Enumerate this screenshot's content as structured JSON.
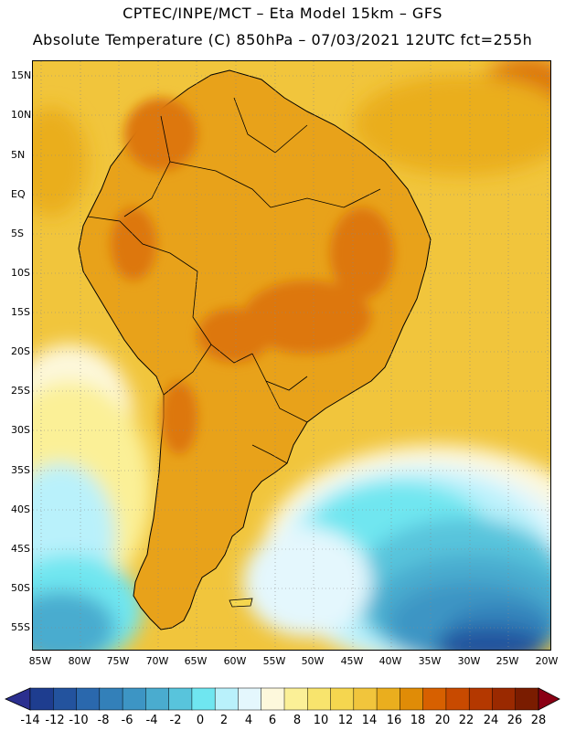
{
  "title": {
    "line1": "CPTEC/INPE/MCT –  Eta Model 15km – GFS",
    "line2": "Absolute Temperature (C) 850hPa – 07/03/2021 12UTC fct=255h"
  },
  "axes": {
    "lat_labels": [
      "15N",
      "10N",
      "5N",
      "EQ",
      "5S",
      "10S",
      "15S",
      "20S",
      "25S",
      "30S",
      "35S",
      "40S",
      "45S",
      "50S",
      "55S"
    ],
    "lon_labels": [
      "85W",
      "80W",
      "75W",
      "70W",
      "65W",
      "60W",
      "55W",
      "50W",
      "45W",
      "40W",
      "35W",
      "30W",
      "25W",
      "20W"
    ]
  },
  "colorbar": {
    "labels": [
      "-14",
      "-12",
      "-10",
      "-8",
      "-6",
      "-4",
      "-2",
      "0",
      "2",
      "4",
      "6",
      "8",
      "10",
      "12",
      "14",
      "16",
      "18",
      "20",
      "22",
      "24",
      "26",
      "28"
    ],
    "colors": [
      "#1e3d8f",
      "#23539e",
      "#2a68ad",
      "#3380b9",
      "#3d95c4",
      "#4aaccf",
      "#58c4dc",
      "#6fe6f0",
      "#b9f1fb",
      "#e4f7fd",
      "#fdf8dc",
      "#fbf097",
      "#f8e46d",
      "#f5d64f",
      "#f1c53c",
      "#eaae1e",
      "#e08c07",
      "#d76000",
      "#c84a00",
      "#b43800",
      "#9a2900",
      "#7a1c00"
    ],
    "under_color": "#2b2f8f",
    "over_color": "#8a0014"
  },
  "map": {
    "ocean_color": "#f1c53c",
    "land_color": "#e8a21a",
    "cold_patches": [
      "#fdf8dc",
      "#fbf097",
      "#e4f7fd",
      "#b9f1fb",
      "#6fe6f0",
      "#58c4dc",
      "#4aaccf",
      "#3d95c4",
      "#3380b9",
      "#23539e"
    ],
    "hot_color": "#dd7710"
  }
}
